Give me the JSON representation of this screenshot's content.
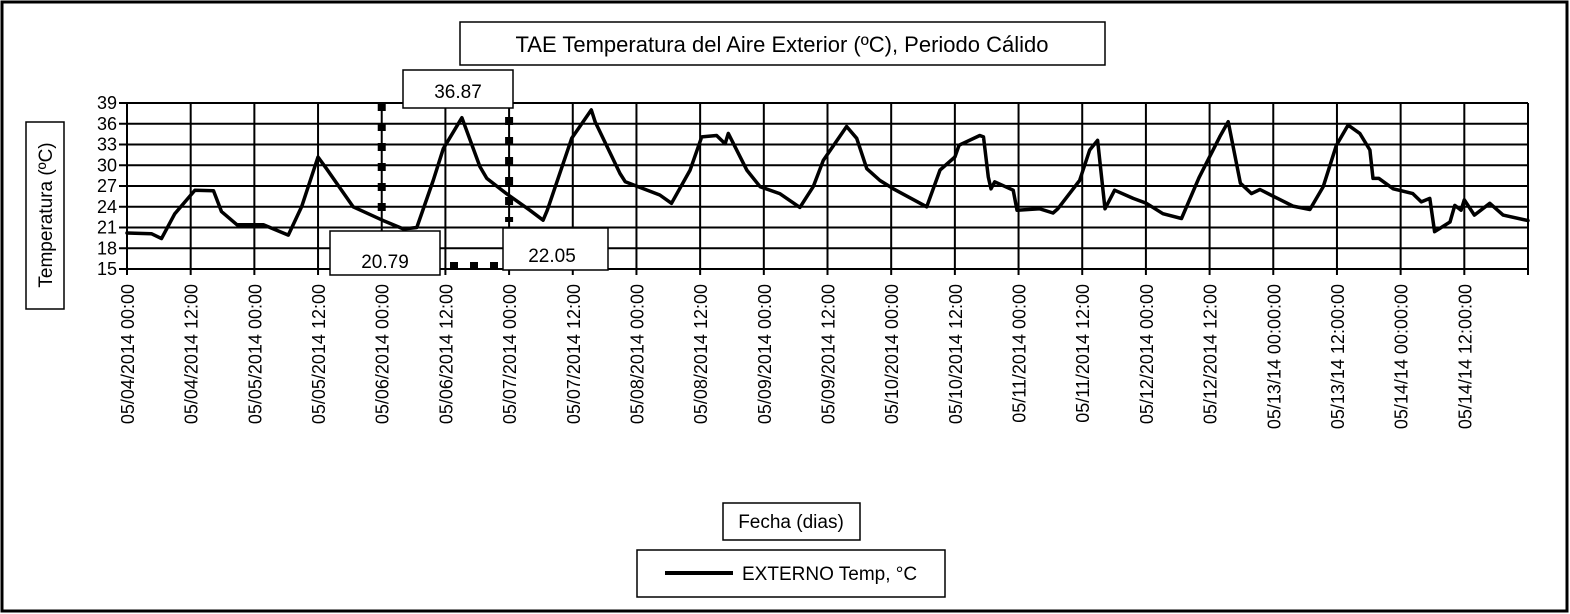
{
  "chart_data": {
    "type": "line",
    "title": "TAE Temperatura del Aire Exterior (ºC), Periodo Cálido",
    "xlabel": "Fecha (dias)",
    "ylabel": "Temperatura (ºC)",
    "ylim": [
      15,
      39
    ],
    "yticks": [
      15,
      18,
      21,
      24,
      27,
      30,
      33,
      36,
      39
    ],
    "x_unit": "hours since 05/04/2014 00:00",
    "xlim": [
      0,
      264
    ],
    "grid": true,
    "legend_position": "bottom",
    "xtick_labels": [
      "05/04/2014 00:00",
      "05/04/2014 12:00",
      "05/05/2014 00:00",
      "05/05/2014 12:00",
      "05/06/2014 00:00",
      "05/06/2014 12:00",
      "05/07/2014 00:00",
      "05/07/2014 12:00",
      "05/08/2014 00:00",
      "05/08/2014 12:00",
      "05/09/2014 00:00",
      "05/09/2014 12:00",
      "05/10/2014 00:00",
      "05/10/2014 12:00",
      "05/11/2014 00:00",
      "05/11/2014 12:00",
      "05/12/2014 00:00",
      "05/12/2014 12:00",
      "05/13/14 00:00:00",
      "05/13/14 12:00:00",
      "05/14/14 00:00:00",
      "05/14/14 12:00:00"
    ],
    "series": [
      {
        "name": "EXTERNO Temp, °C",
        "color": "#000000",
        "x": [
          0,
          4.6,
          6.5,
          9.0,
          12.8,
          16.3,
          17.8,
          20.7,
          25.7,
          30.4,
          32.9,
          36.0,
          37.6,
          42.6,
          48.3,
          52.1,
          54.6,
          57.7,
          59.6,
          63.1,
          66.5,
          67.8,
          71.5,
          75.9,
          78.4,
          79.2,
          83.8,
          87.5,
          88.2,
          92.9,
          93.9,
          100.4,
          102.6,
          106.1,
          108.3,
          111.1,
          112.7,
          113.3,
          116.8,
          119.3,
          123.0,
          126.8,
          129.3,
          131.2,
          135.6,
          137.5,
          139.4,
          141.9,
          144.4,
          150.7,
          153.2,
          156.0,
          156.8,
          160.7,
          161.4,
          162.3,
          162.8,
          163.5,
          167.0,
          167.7,
          172.0,
          174.5,
          175.4,
          179.5,
          181.4,
          182.9,
          184.3,
          186.1,
          189.6,
          192.1,
          195.2,
          198.7,
          202.0,
          205.9,
          207.5,
          209.8,
          211.9,
          213.5,
          216.3,
          219.7,
          222.9,
          225.4,
          227.9,
          230.1,
          232.3,
          234.2,
          234.8,
          235.9,
          238.6,
          242.3,
          243.9,
          245.5,
          246.4,
          249.3,
          250.2,
          251.4,
          252.0,
          253.9,
          256.8,
          259.3,
          264.0
        ],
        "y": [
          20.2,
          20.1,
          19.4,
          23.0,
          26.4,
          26.3,
          23.3,
          21.4,
          21.4,
          19.9,
          24.0,
          31.2,
          29.5,
          24.0,
          22.0,
          20.79,
          21.0,
          27.8,
          32.4,
          36.87,
          29.8,
          28.1,
          25.9,
          23.5,
          22.05,
          23.5,
          33.9,
          38.0,
          36.3,
          28.8,
          27.6,
          25.7,
          24.5,
          29.3,
          34.1,
          34.3,
          33.1,
          34.6,
          29.3,
          26.9,
          25.9,
          23.9,
          26.9,
          30.7,
          35.6,
          33.9,
          29.5,
          27.8,
          26.6,
          24.0,
          29.3,
          31.2,
          32.9,
          34.3,
          34.1,
          28.3,
          26.6,
          27.6,
          26.4,
          23.5,
          23.7,
          23.1,
          23.7,
          27.8,
          32.2,
          33.6,
          23.7,
          26.4,
          25.2,
          24.5,
          23.0,
          22.3,
          28.2,
          34.1,
          36.3,
          27.4,
          25.9,
          26.5,
          25.4,
          24.1,
          23.6,
          26.9,
          32.9,
          35.8,
          34.6,
          32.2,
          28.1,
          28.1,
          26.6,
          25.9,
          24.7,
          25.2,
          20.4,
          21.8,
          24.2,
          23.5,
          25.0,
          22.8,
          24.5,
          22.8,
          22.0
        ]
      }
    ],
    "annotations": [
      {
        "label": "36.87",
        "x": 63.1,
        "y": 36.87
      },
      {
        "label": "20.79",
        "x": 52.1,
        "y": 20.79
      },
      {
        "label": "22.05",
        "x": 78.4,
        "y": 22.05
      }
    ]
  },
  "legend": {
    "label": "EXTERNO Temp, °C"
  }
}
